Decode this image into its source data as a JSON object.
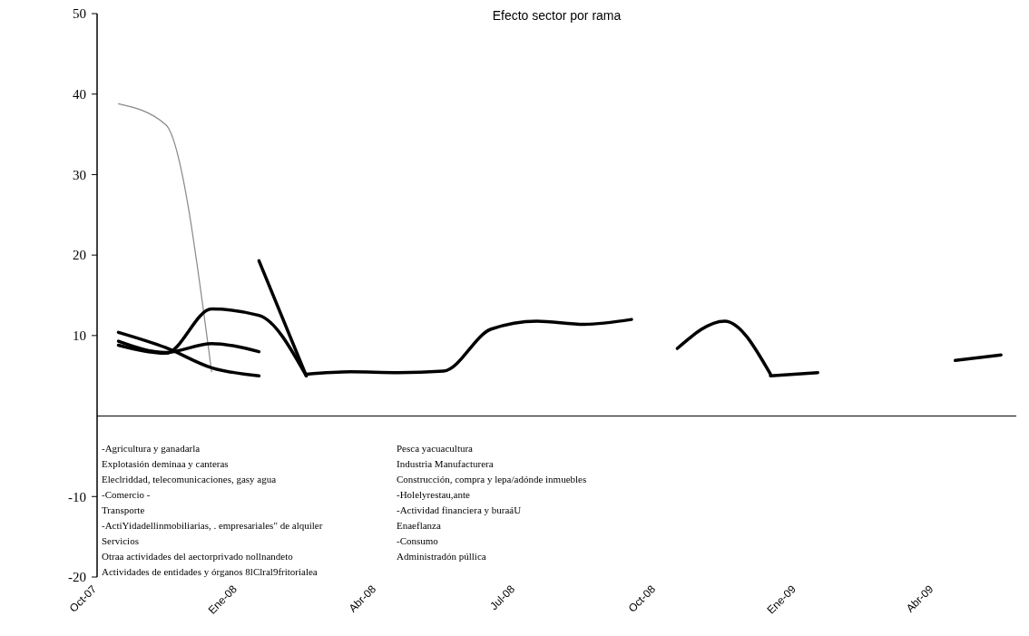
{
  "chart_data": {
    "type": "line",
    "title": "Efecto sector por rama",
    "x": [
      "2007-10-15",
      "2007-11-15",
      "2007-12-15",
      "2008-01-15",
      "2008-02-15",
      "2008-03-15",
      "2008-04-15",
      "2008-05-15",
      "2008-06-15",
      "2008-07-15",
      "2008-08-15",
      "2008-09-15",
      "2008-10-15",
      "2008-11-15",
      "2008-12-15",
      "2009-01-15",
      "2009-02-15",
      "2009-03-15",
      "2009-04-15",
      "2009-05-15"
    ],
    "xlim": [
      "2007-10-01",
      "2009-05-25"
    ],
    "xticks": [
      {
        "value": "2007-10-01",
        "label": "Oct-07"
      },
      {
        "value": "2008-01-01",
        "label": "Ene-08"
      },
      {
        "value": "2008-04-01",
        "label": "Abr-08"
      },
      {
        "value": "2008-07-01",
        "label": "Jul-08"
      },
      {
        "value": "2008-10-01",
        "label": "Oct-08"
      },
      {
        "value": "2009-01-01",
        "label": "Ene-09"
      },
      {
        "value": "2009-04-01",
        "label": "Abr-09"
      }
    ],
    "ylim": [
      -20,
      50
    ],
    "yticks": [
      -20,
      -10,
      10,
      20,
      30,
      40,
      50
    ],
    "series": [
      {
        "color": "#888888",
        "values": [
          38.8,
          36.2,
          5.5,
          null,
          null,
          null,
          null,
          null,
          null,
          null,
          null,
          null,
          null,
          null,
          null,
          null,
          null,
          null,
          null,
          null
        ]
      },
      {
        "color": "#000000",
        "values": [
          null,
          null,
          null,
          19.3,
          5,
          null,
          null,
          null,
          null,
          null,
          null,
          null,
          null,
          null,
          null,
          null,
          null,
          null,
          null,
          null
        ]
      },
      {
        "color": "#000000",
        "values": [
          8.8,
          7.8,
          13.3,
          12.5,
          5,
          null,
          null,
          null,
          null,
          null,
          null,
          null,
          null,
          null,
          null,
          null,
          null,
          null,
          null,
          null
        ]
      },
      {
        "color": "#000000",
        "values": [
          9.3,
          7.9,
          9.0,
          8.0,
          null,
          null,
          null,
          null,
          null,
          null,
          null,
          null,
          null,
          null,
          null,
          null,
          null,
          null,
          null,
          null
        ]
      },
      {
        "color": "#000000",
        "values": [
          10.4,
          8.5,
          6.0,
          5.0,
          null,
          null,
          null,
          null,
          null,
          null,
          null,
          null,
          null,
          null,
          null,
          null,
          null,
          null,
          null,
          null
        ]
      },
      {
        "color": "#000000",
        "values": [
          null,
          null,
          null,
          null,
          5.2,
          5.5,
          5.4,
          5.6,
          10.8,
          11.8,
          11.4,
          12.0,
          null,
          null,
          null,
          null,
          null,
          null,
          null,
          null
        ]
      },
      {
        "color": "#000000",
        "values": [
          null,
          null,
          null,
          null,
          null,
          null,
          null,
          null,
          null,
          null,
          null,
          null,
          8.4,
          11.8,
          5.2,
          null,
          null,
          null,
          null,
          null
        ]
      },
      {
        "color": "#000000",
        "values": [
          null,
          null,
          null,
          null,
          null,
          null,
          null,
          null,
          null,
          null,
          null,
          null,
          null,
          null,
          5.0,
          5.4,
          null,
          null,
          null,
          null
        ]
      },
      {
        "color": "#000000",
        "values": [
          null,
          null,
          null,
          null,
          null,
          null,
          null,
          null,
          null,
          null,
          null,
          null,
          null,
          null,
          null,
          null,
          null,
          null,
          6.9,
          7.6
        ]
      }
    ],
    "annotations": [
      "-Agricultura y ganadarla",
      "Pesca yacuacultura",
      "Explotasión deminaa y canteras",
      "Industria Manufacturera",
      "Eleclriddad, telecomunicaciones, gasy agua",
      "Construcción, compra y lepa/adónde inmuebles",
      "-Comercio -",
      "-Holelyrestau,ante",
      "Transporte",
      "-Actividad financiera y buraáU",
      "-ActiYidadellinmobiliarias, . empresariales\" de alquiler",
      "Enaeflanza",
      "Servicios",
      "-Consumo",
      "Otraa actividades del aectorprivado nollnandeto",
      "Administradón púllica",
      "Actividades de entidades y órganos 8lClral9fritorialea"
    ]
  }
}
